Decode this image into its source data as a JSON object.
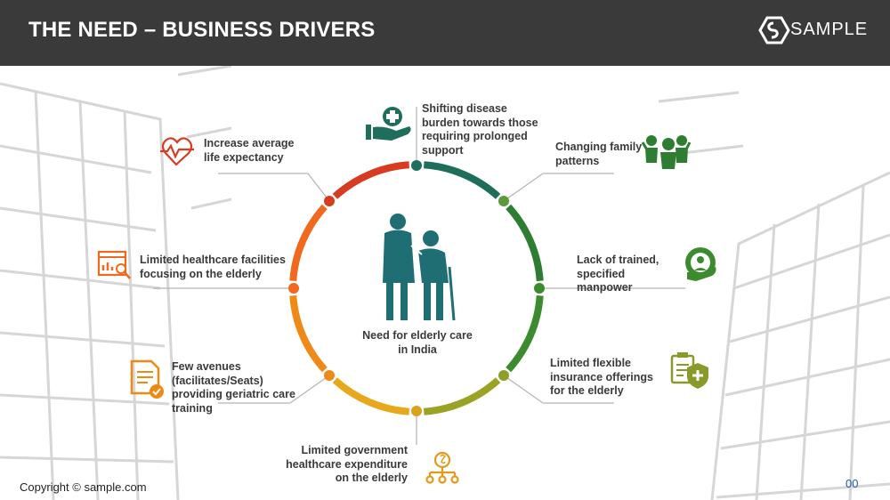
{
  "header": {
    "title": "THE NEED – BUSINESS DRIVERS",
    "logo_text": "SAMPLE"
  },
  "center": {
    "label_line1": "Need for elderly care",
    "label_line2": "in India",
    "icon": "elderly-couple-icon"
  },
  "drivers": [
    {
      "lines": [
        "Shifting disease",
        "burden towards those",
        "requiring prolonged",
        "support"
      ],
      "icon": "hand-medical-cross-icon",
      "color": "#1f6e5c"
    },
    {
      "lines": [
        "Changing family",
        "patterns"
      ],
      "icon": "family-icon",
      "color": "#2e7d32"
    },
    {
      "lines": [
        "Lack of trained,",
        "specified",
        "manpower"
      ],
      "icon": "gear-person-icon",
      "color": "#3d8b2f"
    },
    {
      "lines": [
        "Limited flexible",
        "insurance offerings",
        "for the elderly"
      ],
      "icon": "insurance-shield-icon",
      "color": "#7d9a2a"
    },
    {
      "lines": [
        "Limited government",
        "healthcare expenditure",
        "on the  elderly"
      ],
      "icon": "money-hierarchy-icon",
      "color": "#d79a14"
    },
    {
      "lines": [
        "Few avenues",
        "(facilitates/Seats)",
        "providing geriatric care",
        "training"
      ],
      "icon": "document-check-icon",
      "color": "#ee8a14"
    },
    {
      "lines": [
        "Limited healthcare facilities",
        "focusing on the elderly"
      ],
      "icon": "chart-search-icon",
      "color": "#ef6a1e"
    },
    {
      "lines": [
        "Increase average",
        "life expectancy"
      ],
      "icon": "heart-pulse-icon",
      "color": "#d83c20"
    }
  ],
  "footer": {
    "copyright": "Copyright © sample.com",
    "page_number": "00"
  }
}
